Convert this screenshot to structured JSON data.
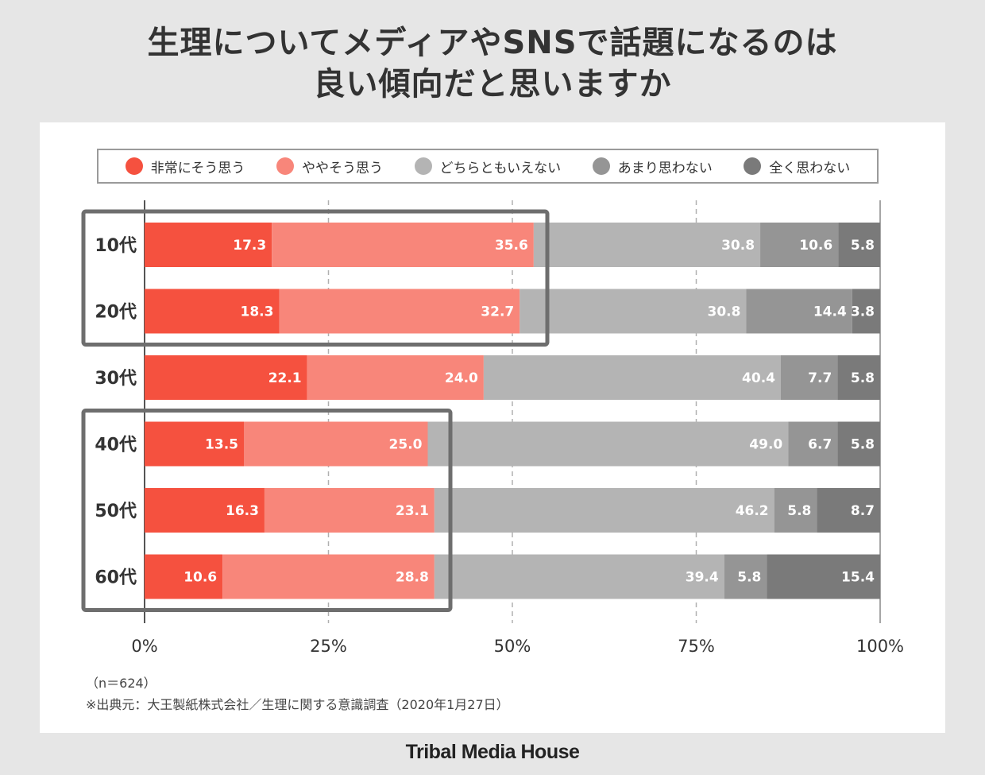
{
  "title_lines": [
    "生理についてメディアやSNSで話題になるのは",
    "良い傾向だと思いますか"
  ],
  "colors": {
    "series": [
      "#f5513f",
      "#f8867a",
      "#b4b4b4",
      "#959595",
      "#7a7a7a"
    ],
    "highlight_box": "#6e6e6e",
    "grid": "#b0b0b0"
  },
  "chart_data": {
    "type": "bar",
    "orientation": "horizontal",
    "stacked": true,
    "categories": [
      "10代",
      "20代",
      "30代",
      "40代",
      "50代",
      "60代"
    ],
    "series": [
      {
        "name": "非常にそう思う",
        "values": [
          17.3,
          18.3,
          22.1,
          13.5,
          16.3,
          10.6
        ]
      },
      {
        "name": "ややそう思う",
        "values": [
          35.6,
          32.7,
          24.0,
          25.0,
          23.1,
          28.8
        ]
      },
      {
        "name": "どちらともいえない",
        "values": [
          30.8,
          30.8,
          40.4,
          49.0,
          46.2,
          39.4
        ]
      },
      {
        "name": "あまり思わない",
        "values": [
          10.6,
          14.4,
          7.7,
          6.7,
          5.8,
          5.8
        ]
      },
      {
        "name": "全く思わない",
        "values": [
          5.8,
          3.8,
          5.8,
          5.8,
          8.7,
          15.4
        ]
      }
    ],
    "xticks": [
      "0%",
      "25%",
      "50%",
      "75%",
      "100%"
    ],
    "xlim": [
      0,
      100
    ],
    "grid": "vertical dashed at 25%, 50%, 75%",
    "legend": "top",
    "highlight_groups": [
      [
        "10代",
        "20代"
      ],
      [
        "40代",
        "50代",
        "60代"
      ]
    ]
  },
  "notes": {
    "sample": "（n＝624）",
    "source": "※出典元：大王製紙株式会社／生理に関する意識調査（2020年1月27日）"
  },
  "brand": "Tribal Media House"
}
